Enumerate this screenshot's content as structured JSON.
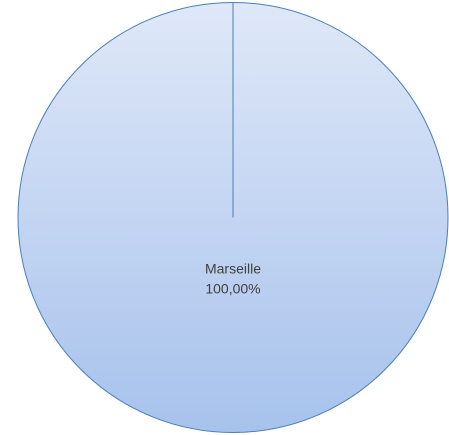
{
  "chart_data": {
    "type": "pie",
    "title": "",
    "slices": [
      {
        "label": "Marseille",
        "value": 100.0,
        "percent_text": "100,00%"
      }
    ],
    "colors": {
      "fill_light": "#dfe8f8",
      "fill_dark": "#a7c2ec",
      "stroke": "#4a7eb8"
    },
    "legend": "none"
  }
}
